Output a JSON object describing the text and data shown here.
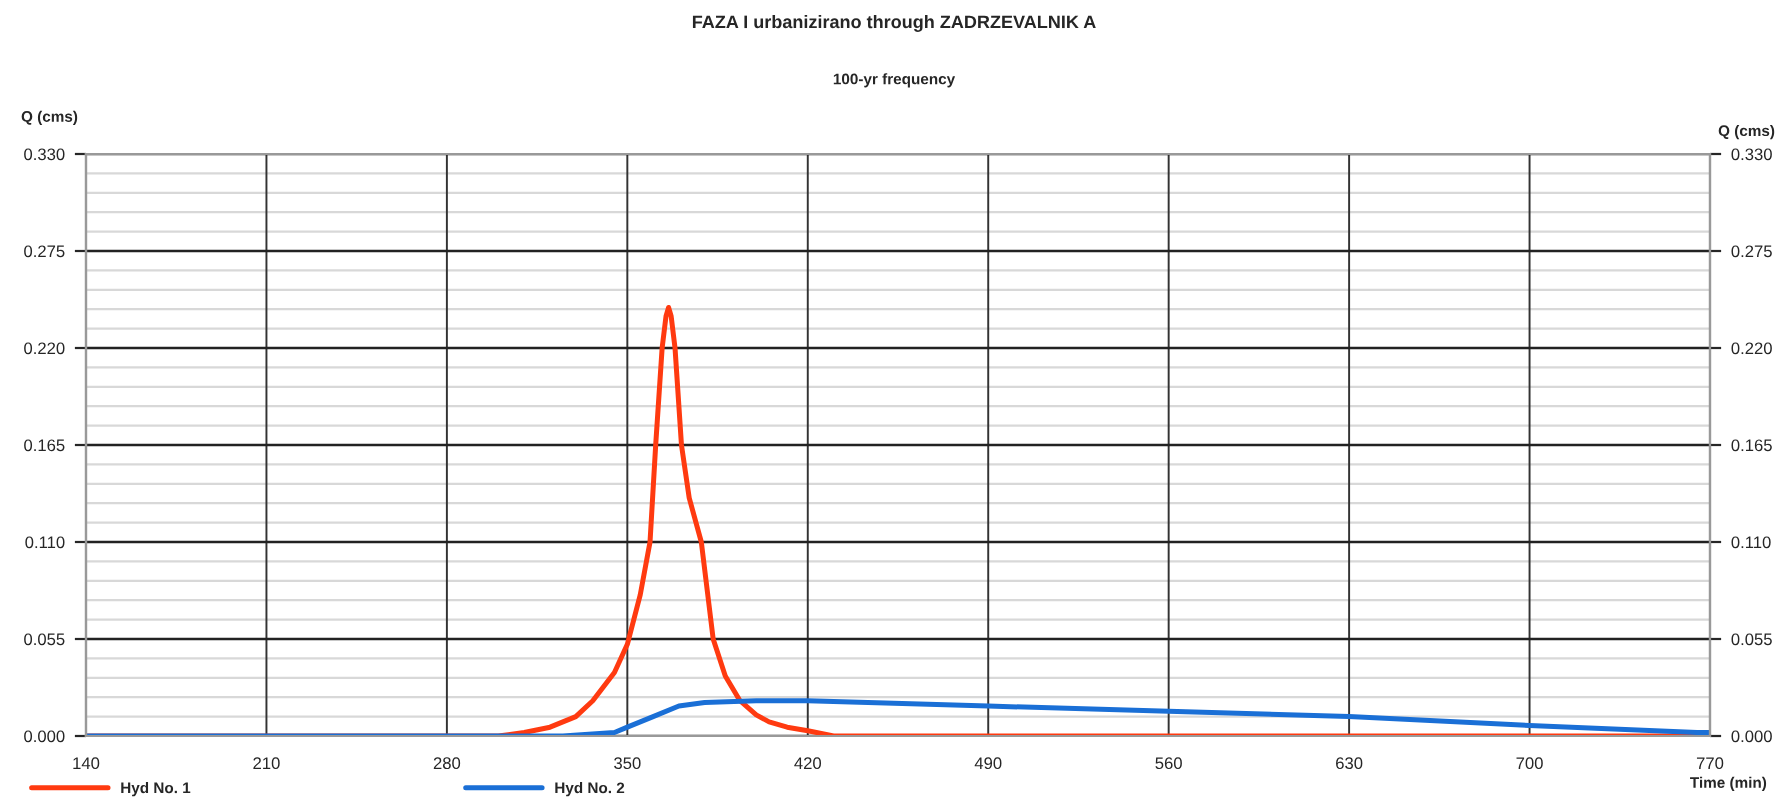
{
  "chart_data": {
    "type": "line",
    "title": "FAZA I urbanizirano through ZADRZEVALNIK A",
    "subtitle": "100-yr frequency",
    "xlabel": "Time (min)",
    "ylabel": "Q (cms)",
    "y2label": "Q (cms)",
    "series": [
      {
        "name": "Hyd No. 1",
        "color": "#ff3a10",
        "x": [
          140,
          280,
          300,
          310,
          320,
          330,
          336.6,
          345,
          350,
          355,
          358.8,
          361,
          363.5,
          365,
          366,
          367,
          368.5,
          371,
          374,
          378.7,
          383.3,
          388,
          393.7,
          400,
          405,
          412,
          420,
          430,
          490,
          560,
          630,
          700,
          770
        ],
        "values": [
          0,
          0,
          0,
          0.002,
          0.005,
          0.011,
          0.02,
          0.036,
          0.052,
          0.08,
          0.11,
          0.165,
          0.22,
          0.238,
          0.243,
          0.238,
          0.22,
          0.165,
          0.135,
          0.11,
          0.055,
          0.034,
          0.02,
          0.012,
          0.008,
          0.005,
          0.003,
          0,
          0,
          0,
          0,
          0,
          0
        ]
      },
      {
        "name": "Hyd No. 2",
        "color": "#1a6fd6",
        "x": [
          140,
          280,
          325,
          345,
          350,
          360,
          370,
          380,
          400,
          420,
          490,
          560,
          630,
          700,
          765,
          770
        ],
        "values": [
          0,
          0,
          0,
          0.002,
          0.005,
          0.011,
          0.017,
          0.019,
          0.02,
          0.02,
          0.017,
          0.014,
          0.011,
          0.006,
          0.002,
          0.002
        ]
      }
    ],
    "xlim": [
      140,
      770
    ],
    "xticks": [
      140,
      210,
      280,
      350,
      420,
      490,
      560,
      630,
      700,
      770
    ],
    "ylim": [
      0,
      0.33
    ],
    "yticks": [
      {
        "value": 0,
        "label": "0.000"
      },
      {
        "value": 0.055,
        "label": "0.055"
      },
      {
        "value": 0.11,
        "label": "0.110"
      },
      {
        "value": 0.165,
        "label": "0.165"
      },
      {
        "value": 0.22,
        "label": "0.220"
      },
      {
        "value": 0.275,
        "label": "0.275"
      },
      {
        "value": 0.33,
        "label": "0.330"
      }
    ],
    "y2lim": [
      0,
      0.33
    ],
    "y2ticks": [
      {
        "value": 0,
        "label": "0.000"
      },
      {
        "value": 0.055,
        "label": "0.055"
      },
      {
        "value": 0.11,
        "label": "0.110"
      },
      {
        "value": 0.165,
        "label": "0.165"
      },
      {
        "value": 0.22,
        "label": "0.220"
      },
      {
        "value": 0.275,
        "label": "0.275"
      },
      {
        "value": 0.33,
        "label": "0.330"
      }
    ],
    "grid": true,
    "legend": "bottom",
    "line_style": "solid",
    "marker": "none"
  }
}
